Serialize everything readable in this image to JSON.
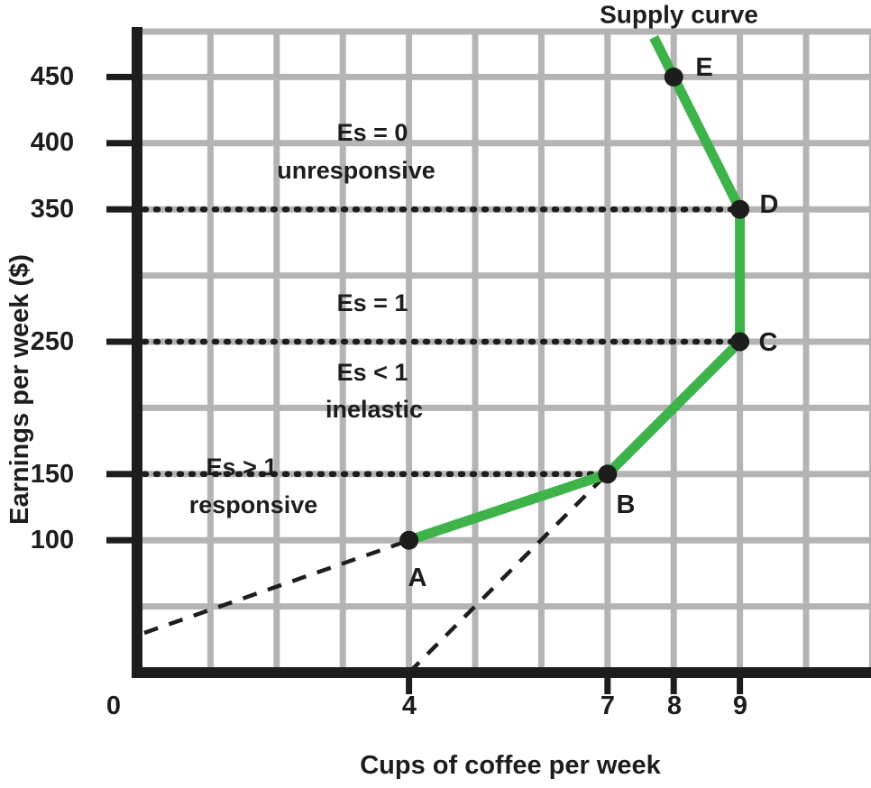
{
  "figure": {
    "curve_label": "Supply curve",
    "background": "#ffffff",
    "colors": {
      "curve_green": "#3eb349",
      "grid_gray": "#b4b4b4",
      "ink": "#1d1d1b"
    }
  },
  "chart_data": {
    "type": "line",
    "title": "",
    "xlabel": "Cups of coffee per week",
    "ylabel": "Earnings per week ($)",
    "xlim": [
      0,
      11
    ],
    "ylim": [
      0,
      500
    ],
    "grid": true,
    "x_gridline_step": 1,
    "y_gridline_step": 50,
    "points": [
      {
        "label": "A",
        "x": 4,
        "y": 100
      },
      {
        "label": "B",
        "x": 7,
        "y": 150
      },
      {
        "label": "C",
        "x": 9,
        "y": 250
      },
      {
        "label": "D",
        "x": 9,
        "y": 350
      },
      {
        "label": "E",
        "x": 8,
        "y": 450
      }
    ],
    "curve_extension": {
      "x": 7.7,
      "y": 480
    },
    "x_ticks": [
      {
        "label": "0",
        "x": 0
      },
      {
        "label": "4",
        "x": 4
      },
      {
        "label": "7",
        "x": 7
      },
      {
        "label": "8",
        "x": 8
      },
      {
        "label": "9",
        "x": 9
      }
    ],
    "y_ticks": [
      {
        "label": "450",
        "y": 450
      },
      {
        "label": "400",
        "y": 400
      },
      {
        "label": "350",
        "y": 350
      },
      {
        "label": "250",
        "y": 250
      },
      {
        "label": "150",
        "y": 150
      },
      {
        "label": "100",
        "y": 100
      }
    ],
    "dotted_guides": [
      {
        "y": 350,
        "to_x": 9
      },
      {
        "y": 250,
        "to_x": 9
      },
      {
        "y": 150,
        "to_x": 7
      }
    ],
    "dashed_rays": [
      {
        "x1": 0,
        "y1": 30,
        "x2": 3.95,
        "y2": 99
      },
      {
        "x1": 4,
        "y1": 0,
        "x2": 6.95,
        "y2": 148
      }
    ],
    "annotations": [
      {
        "line1": "Es = 0",
        "line2": "unresponsive"
      },
      {
        "line1": "Es = 1",
        "line2": ""
      },
      {
        "line1": "Es < 1",
        "line2": "inelastic"
      },
      {
        "line1": "Es > 1",
        "line2": "responsive"
      }
    ]
  }
}
